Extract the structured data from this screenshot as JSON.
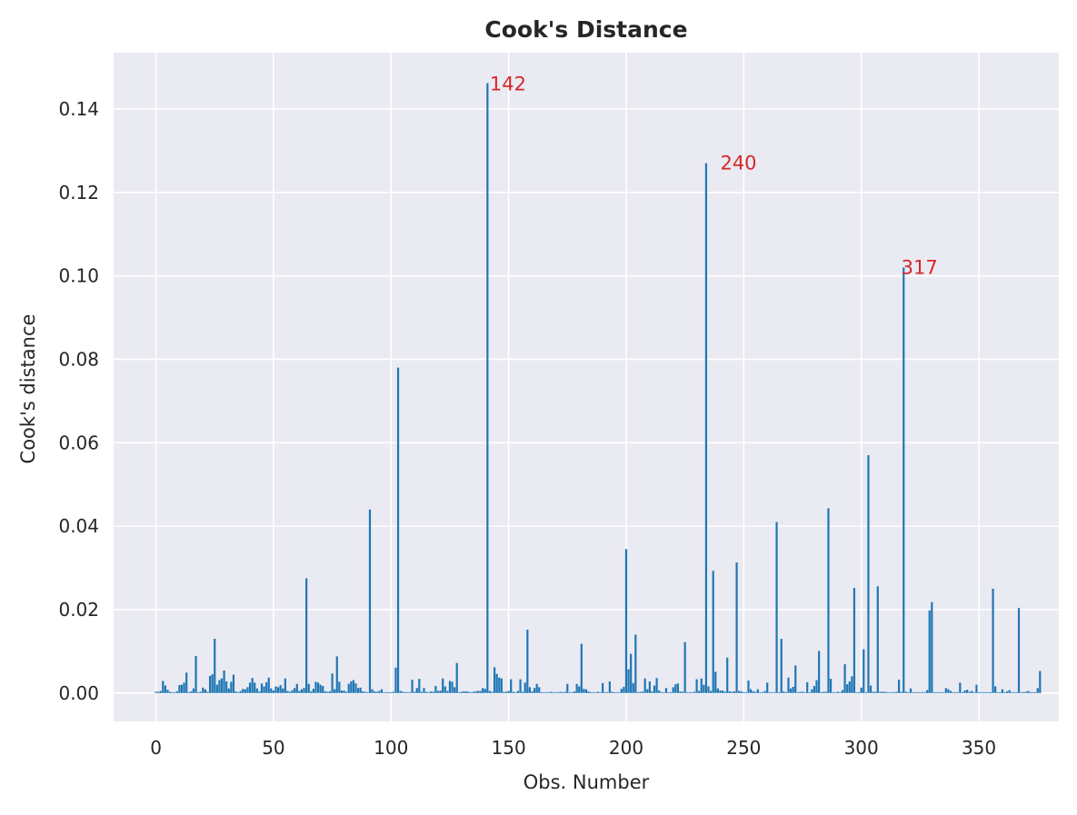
{
  "chart_data": {
    "type": "bar",
    "title": "Cook's Distance",
    "xlabel": "Obs. Number",
    "ylabel": "Cook's distance",
    "xlim": [
      -18,
      384
    ],
    "ylim": [
      -0.0068,
      0.1535
    ],
    "xticks": [
      0,
      50,
      100,
      150,
      200,
      250,
      300,
      350
    ],
    "xtick_labels": [
      "0",
      "50",
      "100",
      "150",
      "200",
      "250",
      "300",
      "350"
    ],
    "yticks": [
      0.0,
      0.02,
      0.04,
      0.06,
      0.08,
      0.1,
      0.12,
      0.14
    ],
    "ytick_labels": [
      "0.00",
      "0.02",
      "0.04",
      "0.06",
      "0.08",
      "0.10",
      "0.12",
      "0.14"
    ],
    "grid": true,
    "annotations": [
      {
        "label": "142",
        "x": 142,
        "y": 0.146
      },
      {
        "label": "240",
        "x": 240,
        "y": 0.127
      },
      {
        "label": "317",
        "x": 317,
        "y": 0.102
      }
    ],
    "values": [
      0.0003,
      0.0003,
      0.0005,
      0.0029,
      0.0018,
      0.0008,
      0.0003,
      0.0002,
      0.0002,
      0.0004,
      0.0019,
      0.002,
      0.0025,
      0.0049,
      0.0002,
      0.0004,
      0.0011,
      0.0089,
      0.0002,
      0.0003,
      0.0013,
      0.0009,
      0.0003,
      0.0041,
      0.0045,
      0.013,
      0.002,
      0.0031,
      0.0035,
      0.0054,
      0.0028,
      0.0011,
      0.0027,
      0.0044,
      0.0004,
      0.0002,
      0.0005,
      0.001,
      0.0009,
      0.0014,
      0.0025,
      0.0036,
      0.0025,
      0.0011,
      0.0004,
      0.0023,
      0.0016,
      0.0026,
      0.0037,
      0.0011,
      0.0006,
      0.0016,
      0.0014,
      0.0019,
      0.0011,
      0.0035,
      0.0005,
      0.0003,
      0.0007,
      0.0012,
      0.0022,
      0.0005,
      0.0009,
      0.0012,
      0.0275,
      0.0022,
      0.0004,
      0.001,
      0.0027,
      0.0025,
      0.002,
      0.0017,
      0.0004,
      0.0003,
      0.0004,
      0.0047,
      0.0009,
      0.0088,
      0.0027,
      0.0006,
      0.0006,
      0.0003,
      0.0022,
      0.0028,
      0.0031,
      0.0023,
      0.0012,
      0.0013,
      0.0004,
      0.0003,
      0.0002,
      0.044,
      0.0009,
      0.0004,
      0.0003,
      0.0005,
      0.0009,
      0.0002,
      0.0002,
      0.0002,
      0.0002,
      0.0003,
      0.0061,
      0.078,
      0.0005,
      0.0003,
      0.0002,
      0.0002,
      0.0002,
      0.0032,
      0.0003,
      0.0012,
      0.0034,
      0.0003,
      0.0012,
      0.0003,
      0.0002,
      0.0004,
      0.0003,
      0.0017,
      0.0005,
      0.0006,
      0.0035,
      0.0016,
      0.0005,
      0.0029,
      0.0027,
      0.0014,
      0.0072,
      0.0002,
      0.0003,
      0.0004,
      0.0004,
      0.0003,
      0.0002,
      0.0003,
      0.0004,
      0.0005,
      0.0005,
      0.0012,
      0.001,
      0.1462,
      0.0005,
      0.0003,
      0.0062,
      0.0046,
      0.0037,
      0.0035,
      0.0003,
      0.0003,
      0.0005,
      0.0033,
      0.0003,
      0.0002,
      0.0005,
      0.0033,
      0.0003,
      0.0025,
      0.0152,
      0.0014,
      0.0004,
      0.0012,
      0.0022,
      0.0014,
      0.0002,
      0.0002,
      0.0002,
      0.0002,
      0.0003,
      0.0002,
      0.0002,
      0.0002,
      0.0003,
      0.0002,
      0.0003,
      0.0022,
      0.0002,
      0.0002,
      0.0004,
      0.0022,
      0.0016,
      0.0118,
      0.001,
      0.0009,
      0.0004,
      0.0002,
      0.0002,
      0.0002,
      0.0003,
      0.0002,
      0.0024,
      0.0002,
      0.0002,
      0.0028,
      0.0003,
      0.0002,
      0.0002,
      0.0002,
      0.001,
      0.0015,
      0.0345,
      0.0057,
      0.0094,
      0.0024,
      0.014,
      0.0002,
      0.0003,
      0.0003,
      0.0035,
      0.0009,
      0.0028,
      0.0004,
      0.0018,
      0.0036,
      0.0006,
      0.0002,
      0.0002,
      0.0012,
      0.0002,
      0.0002,
      0.0014,
      0.0021,
      0.0023,
      0.0004,
      0.0003,
      0.0122,
      0.0002,
      0.0002,
      0.0002,
      0.0003,
      0.0033,
      0.0005,
      0.0035,
      0.002,
      0.127,
      0.0016,
      0.0005,
      0.0293,
      0.0051,
      0.0011,
      0.0006,
      0.0006,
      0.0003,
      0.0085,
      0.0004,
      0.0003,
      0.0004,
      0.0313,
      0.0005,
      0.0004,
      0.0002,
      0.0002,
      0.003,
      0.0009,
      0.0004,
      0.0003,
      0.0009,
      0.0002,
      0.0002,
      0.0005,
      0.0025,
      0.0002,
      0.0002,
      0.0002,
      0.041,
      0.0002,
      0.013,
      0.0004,
      0.0002,
      0.0037,
      0.0011,
      0.0015,
      0.0066,
      0.0002,
      0.0003,
      0.0003,
      0.0002,
      0.0026,
      0.0002,
      0.0009,
      0.0017,
      0.0031,
      0.0101,
      0.0002,
      0.0003,
      0.0003,
      0.0443,
      0.0034,
      0.0002,
      0.0002,
      0.0003,
      0.0002,
      0.0007,
      0.0069,
      0.0021,
      0.0028,
      0.004,
      0.0252,
      0.0002,
      0.0002,
      0.0013,
      0.0105,
      0.0002,
      0.057,
      0.0018,
      0.0003,
      0.0003,
      0.0256,
      0.0003,
      0.0003,
      0.0003,
      0.0002,
      0.0002,
      0.0002,
      0.0002,
      0.0003,
      0.0032,
      0.0003,
      0.102,
      0.0003,
      0.0002,
      0.0011,
      0.0002,
      0.0002,
      0.0002,
      0.0002,
      0.0002,
      0.0002,
      0.0007,
      0.0198,
      0.0218,
      0.0002,
      0.0002,
      0.0002,
      0.0002,
      0.0002,
      0.0012,
      0.0009,
      0.0005,
      0.0002,
      0.0002,
      0.0002,
      0.0025,
      0.0002,
      0.0006,
      0.0008,
      0.0003,
      0.0005,
      0.0002,
      0.002,
      0.0002,
      0.0002,
      0.0002,
      0.0002,
      0.0002,
      0.0002,
      0.025,
      0.0016,
      0.0002,
      0.0002,
      0.0009,
      0.0002,
      0.0004,
      0.0007,
      0.0002,
      0.0002,
      0.0002,
      0.0204,
      0.0002,
      0.0002,
      0.0003,
      0.0005,
      0.0002,
      0.0002,
      0.0002,
      0.0012,
      0.0053
    ],
    "colors": {
      "bar": "#1f77b4",
      "annotation": "#d62728",
      "plot_bg": "#eaeaf2",
      "grid": "#ffffff",
      "text": "#262626"
    }
  }
}
